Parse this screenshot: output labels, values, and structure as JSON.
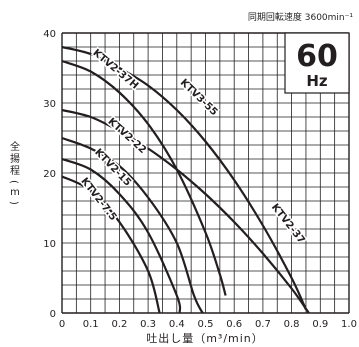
{
  "chart_data": {
    "type": "line",
    "speed_note": "同期回転速度 3600min⁻¹",
    "frequency_value": "60",
    "frequency_unit": "Hz",
    "xlabel": "吐出し量（m³/min）",
    "ylabel": "全揚程(m)",
    "xlim": [
      0,
      1.0
    ],
    "ylim": [
      0,
      40
    ],
    "x_ticks": [
      "0",
      "0.1",
      "0.2",
      "0.3",
      "0.4",
      "0.5",
      "0.6",
      "0.7",
      "0.8",
      "0.9",
      "1.0"
    ],
    "y_ticks": [
      "0",
      "10",
      "20",
      "30",
      "40"
    ],
    "grid": true,
    "line_color": "#231f20",
    "grid_color": "#231f20",
    "series": [
      {
        "name": "KTV2-7.5",
        "label_at": [
          0.12,
          16.0
        ],
        "label_angle": 52,
        "points": [
          [
            0,
            19.5
          ],
          [
            0.1,
            17.5
          ],
          [
            0.2,
            13.0
          ],
          [
            0.3,
            6.0
          ],
          [
            0.34,
            0
          ]
        ]
      },
      {
        "name": "KTV2-15",
        "label_at": [
          0.17,
          20.5
        ],
        "label_angle": 46,
        "points": [
          [
            0,
            22.0
          ],
          [
            0.1,
            20.5
          ],
          [
            0.2,
            17.0
          ],
          [
            0.3,
            11.5
          ],
          [
            0.4,
            2.5
          ],
          [
            0.41,
            0
          ]
        ]
      },
      {
        "name": "KTV2-22",
        "label_at": [
          0.22,
          25.0
        ],
        "label_angle": 42,
        "points": [
          [
            0,
            25.0
          ],
          [
            0.1,
            23.5
          ],
          [
            0.2,
            21.0
          ],
          [
            0.3,
            16.5
          ],
          [
            0.4,
            10.0
          ],
          [
            0.46,
            2.5
          ],
          [
            0.49,
            0
          ]
        ]
      },
      {
        "name": "KTV2-37H",
        "label_at": [
          0.18,
          34.5
        ],
        "label_angle": 40,
        "points": [
          [
            0,
            36.0
          ],
          [
            0.1,
            34.5
          ],
          [
            0.2,
            31.5
          ],
          [
            0.3,
            27.0
          ],
          [
            0.4,
            20.5
          ],
          [
            0.5,
            11.5
          ],
          [
            0.55,
            5.5
          ],
          [
            0.57,
            2.5
          ]
        ]
      },
      {
        "name": "KTV3-55",
        "label_at": [
          0.47,
          30.5
        ],
        "label_angle": 44,
        "points": [
          [
            0,
            38.0
          ],
          [
            0.1,
            37.0
          ],
          [
            0.2,
            35.0
          ],
          [
            0.3,
            32.5
          ],
          [
            0.4,
            29.0
          ],
          [
            0.5,
            24.5
          ],
          [
            0.6,
            19.0
          ],
          [
            0.7,
            12.5
          ],
          [
            0.8,
            5.0
          ],
          [
            0.85,
            0.5
          ]
        ]
      },
      {
        "name": "KTV2-37",
        "label_at": [
          0.78,
          12.5
        ],
        "label_angle": 52,
        "points": [
          [
            0,
            29.0
          ],
          [
            0.1,
            28.0
          ],
          [
            0.2,
            26.0
          ],
          [
            0.3,
            23.5
          ],
          [
            0.4,
            20.5
          ],
          [
            0.5,
            17.0
          ],
          [
            0.6,
            13.0
          ],
          [
            0.7,
            8.5
          ],
          [
            0.8,
            3.5
          ],
          [
            0.86,
            0
          ]
        ]
      }
    ]
  }
}
